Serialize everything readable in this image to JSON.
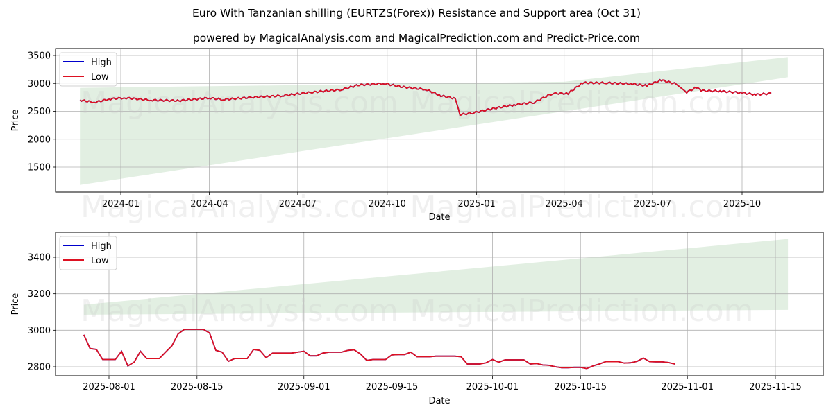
{
  "header": {
    "title": "Euro With Tanzanian shilling (EURTZS(Forex)) Resistance and Support area (Oct 31)",
    "subtitle": "powered by MagicalAnalysis.com and MagicalPrediction.com and Predict-Price.com"
  },
  "watermark": {
    "left": "MagicalAnalysis.com",
    "right": "MagicalPrediction.com"
  },
  "colors": {
    "high": "#0000cc",
    "low": "#dd1122",
    "band": "#d8ead8",
    "grid": "#b0b0b0"
  },
  "chart_data": [
    {
      "type": "line",
      "title": "Euro With Tanzanian shilling (EURTZS(Forex)) Resistance and Support area (Oct 31)",
      "xlabel": "Date",
      "ylabel": "Price",
      "ylim": [
        1045,
        3625
      ],
      "yticks": [
        "1500",
        "2000",
        "2500",
        "3000",
        "3500"
      ],
      "xticks": [
        "2024-01",
        "2024-04",
        "2024-07",
        "2024-10",
        "2025-01",
        "2025-04",
        "2025-07",
        "2025-10"
      ],
      "grid": true,
      "legend": {
        "position": "upper left",
        "entries": [
          "High",
          "Low"
        ]
      },
      "series": [
        {
          "name": "Low",
          "x": [
            "2023-11-20",
            "2023-12-05",
            "2023-12-20",
            "2024-01-05",
            "2024-02-01",
            "2024-03-01",
            "2024-04-01",
            "2024-04-15",
            "2024-05-15",
            "2024-06-15",
            "2024-07-15",
            "2024-08-15",
            "2024-09-01",
            "2024-09-28",
            "2024-10-15",
            "2024-11-10",
            "2024-11-25",
            "2024-12-10",
            "2024-12-15",
            "2024-12-28",
            "2025-01-15",
            "2025-02-10",
            "2025-03-01",
            "2025-03-20",
            "2025-04-05",
            "2025-04-20",
            "2025-05-15",
            "2025-06-10",
            "2025-06-25",
            "2025-07-10",
            "2025-07-25",
            "2025-08-05",
            "2025-08-15",
            "2025-08-20",
            "2025-09-10",
            "2025-10-01",
            "2025-10-15",
            "2025-10-31"
          ],
          "values": [
            2700,
            2660,
            2720,
            2740,
            2700,
            2690,
            2740,
            2710,
            2750,
            2780,
            2840,
            2890,
            2970,
            3000,
            2940,
            2890,
            2780,
            2730,
            2440,
            2470,
            2540,
            2620,
            2660,
            2820,
            2820,
            3010,
            3010,
            2990,
            2960,
            3060,
            2990,
            2840,
            2930,
            2870,
            2860,
            2830,
            2800,
            2820
          ]
        },
        {
          "name": "High",
          "note": "overlaps Low almost everywhere"
        }
      ],
      "band": {
        "name": "Support/Resistance area",
        "x_start": "2023-11-20",
        "x_end": "2025-11-17",
        "upper": [
          [
            "2023-11-20",
            2920
          ],
          [
            "2025-04-01",
            3030
          ],
          [
            "2025-11-17",
            3470
          ]
        ],
        "lower": [
          [
            "2023-11-20",
            1180
          ],
          [
            "2025-11-17",
            3110
          ]
        ]
      }
    },
    {
      "type": "line",
      "xlabel": "Date",
      "ylabel": "Price",
      "ylim": [
        2750,
        3540
      ],
      "yticks": [
        "2800",
        "3000",
        "3200",
        "3400"
      ],
      "xticks": [
        "2025-08-01",
        "2025-08-15",
        "2025-09-01",
        "2025-09-15",
        "2025-10-01",
        "2025-10-15",
        "2025-11-01",
        "2025-11-15"
      ],
      "grid": true,
      "legend": {
        "position": "upper left",
        "entries": [
          "High",
          "Low"
        ]
      },
      "series": [
        {
          "name": "Low",
          "x": [
            "2025-07-28",
            "2025-07-29",
            "2025-07-30",
            "2025-07-31",
            "2025-08-01",
            "2025-08-02",
            "2025-08-03",
            "2025-08-04",
            "2025-08-05",
            "2025-08-06",
            "2025-08-07",
            "2025-08-08",
            "2025-08-09",
            "2025-08-10",
            "2025-08-11",
            "2025-08-12",
            "2025-08-13",
            "2025-08-14",
            "2025-08-15",
            "2025-08-16",
            "2025-08-17",
            "2025-08-18",
            "2025-08-19",
            "2025-08-20",
            "2025-08-21",
            "2025-08-22",
            "2025-08-23",
            "2025-08-24",
            "2025-08-25",
            "2025-08-26",
            "2025-08-27",
            "2025-08-28",
            "2025-08-29",
            "2025-08-30",
            "2025-08-31",
            "2025-09-01",
            "2025-09-02",
            "2025-09-03",
            "2025-09-04",
            "2025-09-05",
            "2025-09-06",
            "2025-09-07",
            "2025-09-08",
            "2025-09-09",
            "2025-09-10",
            "2025-09-11",
            "2025-09-12",
            "2025-09-13",
            "2025-09-14",
            "2025-09-15",
            "2025-09-16",
            "2025-09-17",
            "2025-09-18",
            "2025-09-19",
            "2025-09-20",
            "2025-09-21",
            "2025-09-22",
            "2025-09-23",
            "2025-09-24",
            "2025-09-25",
            "2025-09-26",
            "2025-09-27",
            "2025-09-28",
            "2025-09-29",
            "2025-09-30",
            "2025-10-01",
            "2025-10-02",
            "2025-10-03",
            "2025-10-04",
            "2025-10-05",
            "2025-10-06",
            "2025-10-07",
            "2025-10-08",
            "2025-10-09",
            "2025-10-10",
            "2025-10-11",
            "2025-10-12",
            "2025-10-13",
            "2025-10-14",
            "2025-10-15",
            "2025-10-16",
            "2025-10-17",
            "2025-10-18",
            "2025-10-19",
            "2025-10-20",
            "2025-10-21",
            "2025-10-22",
            "2025-10-23",
            "2025-10-24",
            "2025-10-25",
            "2025-10-26",
            "2025-10-27",
            "2025-10-28",
            "2025-10-29",
            "2025-10-30"
          ],
          "values": [
            2975,
            2900,
            2895,
            2840,
            2840,
            2840,
            2885,
            2805,
            2825,
            2885,
            2845,
            2845,
            2845,
            2880,
            2915,
            2980,
            3005,
            3005,
            3005,
            3005,
            2985,
            2890,
            2880,
            2830,
            2845,
            2845,
            2845,
            2895,
            2890,
            2850,
            2875,
            2875,
            2875,
            2875,
            2880,
            2885,
            2860,
            2860,
            2875,
            2880,
            2880,
            2880,
            2890,
            2893,
            2870,
            2835,
            2840,
            2840,
            2840,
            2865,
            2867,
            2867,
            2880,
            2855,
            2855,
            2855,
            2858,
            2858,
            2858,
            2858,
            2855,
            2815,
            2815,
            2815,
            2822,
            2840,
            2825,
            2838,
            2838,
            2838,
            2838,
            2815,
            2818,
            2810,
            2808,
            2800,
            2795,
            2795,
            2797,
            2797,
            2790,
            2805,
            2815,
            2828,
            2828,
            2828,
            2820,
            2822,
            2830,
            2848,
            2828,
            2827,
            2827,
            2823,
            2815
          ]
        },
        {
          "name": "High",
          "note": "overlaps Low"
        }
      ],
      "band": {
        "name": "Support/Resistance area",
        "x_start": "2025-07-28",
        "x_end": "2025-11-17",
        "upper": [
          [
            "2025-07-28",
            3140
          ],
          [
            "2025-11-17",
            3500
          ]
        ],
        "lower": [
          [
            "2025-07-28",
            3085
          ],
          [
            "2025-11-17",
            3112
          ]
        ]
      }
    }
  ]
}
